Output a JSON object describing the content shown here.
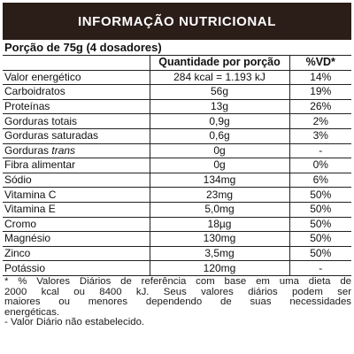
{
  "panel": {
    "title": "INFORMAÇÃO NUTRICIONAL",
    "portion": "Porção de 75g (4 dosadores)"
  },
  "table": {
    "headers": {
      "nutrient": "",
      "quantity": "Quantidade por porção",
      "dv": "%VD*"
    },
    "rows": [
      {
        "nutrient": "Valor energético",
        "qualifier": "",
        "quantity": "284 kcal = 1.193 kJ",
        "dv": "14%"
      },
      {
        "nutrient": "Carboidratos",
        "qualifier": "",
        "quantity": "56g",
        "dv": "19%"
      },
      {
        "nutrient": "Proteínas",
        "qualifier": "",
        "quantity": "13g",
        "dv": "26%"
      },
      {
        "nutrient": "Gorduras totais",
        "qualifier": "",
        "quantity": "0,9g",
        "dv": "2%"
      },
      {
        "nutrient": "Gorduras saturadas",
        "qualifier": "",
        "quantity": "0,6g",
        "dv": "3%"
      },
      {
        "nutrient": "Gorduras ",
        "qualifier": "trans",
        "quantity": "0g",
        "dv": "-"
      },
      {
        "nutrient": "Fibra alimentar",
        "qualifier": "",
        "quantity": "0g",
        "dv": "0%"
      },
      {
        "nutrient": "Sódio",
        "qualifier": "",
        "quantity": "134mg",
        "dv": "6%"
      },
      {
        "nutrient": "Vitamina C",
        "qualifier": "",
        "quantity": "23mg",
        "dv": "50%"
      },
      {
        "nutrient": "Vitamina E",
        "qualifier": "",
        "quantity": "5,0mg",
        "dv": "50%"
      },
      {
        "nutrient": "Cromo",
        "qualifier": "",
        "quantity": "18µg",
        "dv": "50%"
      },
      {
        "nutrient": "Magnésio",
        "qualifier": "",
        "quantity": "130mg",
        "dv": "50%"
      },
      {
        "nutrient": "Zinco",
        "qualifier": "",
        "quantity": "3,5mg",
        "dv": "50%"
      },
      {
        "nutrient": "Potássio",
        "qualifier": "",
        "quantity": "120mg",
        "dv": "-"
      }
    ]
  },
  "footnotes": {
    "lines": [
      "* % Valores Diários de referência com base em uma dieta de",
      "2000 kcal ou 8400 kJ. Seus valores diários podem ser",
      "maiores ou menores dependendo de suas necessidades",
      "energéticas.",
      "- Valor Diário não estabelecido."
    ]
  },
  "colors": {
    "title_background": "#2b1d18",
    "title_text": "#ffffff",
    "rule_lines": "#222222",
    "body_text": "#111111"
  }
}
